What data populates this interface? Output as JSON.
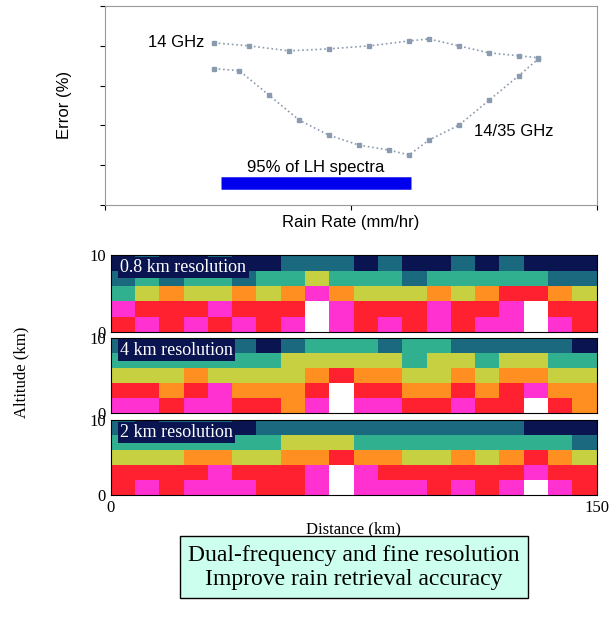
{
  "chart_data": [
    {
      "type": "line",
      "xlabel": "Rain Rate (mm/hr)",
      "ylabel": "Error (%)",
      "xlim": [
        0,
        100
      ],
      "ylim": [
        0,
        100
      ],
      "xticks": [
        0,
        50,
        100
      ],
      "yticks": [
        0,
        20,
        40,
        60,
        80,
        100
      ],
      "tick_labels": false,
      "series": [
        {
          "name": "14 GHz",
          "color": "#8a9bb0",
          "marker": "s",
          "line_style": "dotted",
          "x": [
            22.3,
            29.4,
            37.5,
            45.6,
            53.8,
            61.9,
            65.9,
            72.0,
            78.1,
            84.2,
            88.2
          ],
          "values": [
            81.5,
            80,
            77.5,
            78.5,
            80,
            82.5,
            83.5,
            80,
            76.5,
            75,
            74
          ]
        },
        {
          "name": "14/35 GHz",
          "color": "#8a9bb0",
          "marker": "s",
          "line_style": "dotted",
          "x": [
            22.3,
            27.4,
            33.5,
            39.6,
            45.6,
            51.7,
            57.8,
            61.9,
            65.9,
            72.0,
            78.1,
            84.2,
            88.2
          ],
          "values": [
            68.5,
            67.5,
            55,
            42.5,
            35,
            30,
            27.5,
            25,
            32.5,
            40,
            52.5,
            65,
            73.5
          ]
        }
      ],
      "annotations": [
        {
          "text": "95% of LH spectra",
          "x_range": [
            23.7,
            62.3
          ],
          "y": 11,
          "color": "#0000ee"
        }
      ]
    },
    {
      "type": "heatmap",
      "title": "0.8 km resolution",
      "xlim": [
        0,
        150
      ],
      "ylim": [
        0,
        10
      ],
      "xticks": [
        0,
        150
      ],
      "yticks": [
        0,
        10
      ],
      "tick_labels": "y",
      "color_range": [
        0,
        7
      ],
      "cells": [
        [
          5,
          6,
          5,
          6,
          5,
          6,
          5,
          6,
          7,
          6,
          5,
          6,
          5,
          6,
          5,
          6,
          6,
          7,
          6,
          5
        ],
        [
          6,
          5,
          5,
          5,
          6,
          5,
          5,
          5,
          7,
          6,
          5,
          5,
          5,
          6,
          5,
          5,
          6,
          7,
          5,
          5
        ],
        [
          2,
          3,
          4,
          3,
          3,
          4,
          3,
          4,
          6,
          4,
          3,
          3,
          3,
          4,
          3,
          4,
          5,
          5,
          4,
          3
        ],
        [
          1,
          2,
          1,
          2,
          2,
          1,
          2,
          2,
          3,
          2,
          2,
          2,
          1,
          2,
          2,
          2,
          2,
          2,
          1,
          1
        ],
        [
          0,
          1,
          0,
          0,
          1,
          0,
          0,
          1,
          1,
          1,
          0,
          1,
          0,
          0,
          1,
          0,
          1,
          0,
          0,
          0
        ]
      ]
    },
    {
      "type": "heatmap",
      "title": "4 km resolution",
      "xlim": [
        0,
        150
      ],
      "ylim": [
        0,
        10
      ],
      "xticks": [
        0,
        150
      ],
      "yticks": [
        0,
        10
      ],
      "tick_labels": "y",
      "color_range": [
        0,
        7
      ],
      "cells": [
        [
          6,
          6,
          5,
          6,
          6,
          5,
          5,
          4,
          6,
          7,
          6,
          6,
          5,
          5,
          6,
          5,
          5,
          7,
          5,
          4
        ],
        [
          5,
          5,
          4,
          5,
          6,
          4,
          4,
          4,
          5,
          7,
          5,
          5,
          4,
          4,
          5,
          4,
          5,
          6,
          4,
          4
        ],
        [
          3,
          3,
          3,
          4,
          3,
          3,
          3,
          3,
          4,
          5,
          4,
          4,
          3,
          3,
          4,
          3,
          4,
          4,
          3,
          3
        ],
        [
          2,
          2,
          2,
          2,
          2,
          2,
          2,
          3,
          3,
          3,
          3,
          3,
          2,
          3,
          3,
          2,
          3,
          3,
          2,
          2
        ],
        [
          1,
          1,
          0,
          1,
          1,
          1,
          0,
          1,
          2,
          2,
          2,
          1,
          2,
          2,
          1,
          1,
          1,
          1,
          1,
          0
        ]
      ]
    },
    {
      "type": "heatmap",
      "title": "2 km resolution",
      "xlim": [
        0,
        150
      ],
      "ylim": [
        0,
        10
      ],
      "xticks": [
        0,
        150
      ],
      "yticks": [
        0,
        10
      ],
      "color_range": [
        0,
        7
      ],
      "cells": [
        [
          5,
          6,
          5,
          6,
          6,
          6,
          5,
          5,
          6,
          7,
          6,
          6,
          6,
          5,
          6,
          5,
          6,
          7,
          6,
          5
        ],
        [
          5,
          5,
          5,
          5,
          6,
          5,
          5,
          5,
          6,
          7,
          6,
          5,
          5,
          5,
          5,
          5,
          5,
          6,
          5,
          5
        ],
        [
          3,
          3,
          3,
          4,
          4,
          3,
          3,
          4,
          4,
          5,
          4,
          4,
          3,
          3,
          4,
          3,
          4,
          5,
          4,
          3
        ],
        [
          2,
          2,
          2,
          2,
          2,
          2,
          2,
          3,
          3,
          3,
          2,
          2,
          2,
          2,
          2,
          2,
          2,
          2,
          2,
          1
        ],
        [
          1,
          0,
          1,
          1,
          1,
          0,
          1,
          1,
          1,
          1,
          1,
          1,
          1,
          1,
          1,
          1,
          1,
          0,
          0,
          0
        ]
      ]
    }
  ],
  "figure_labels": {
    "ylabel": "Altitude (km)",
    "xlabel": "Distance (km)"
  },
  "caption": [
    "Dual-frequency and fine resolution",
    "Improve rain retrieval accuracy"
  ]
}
